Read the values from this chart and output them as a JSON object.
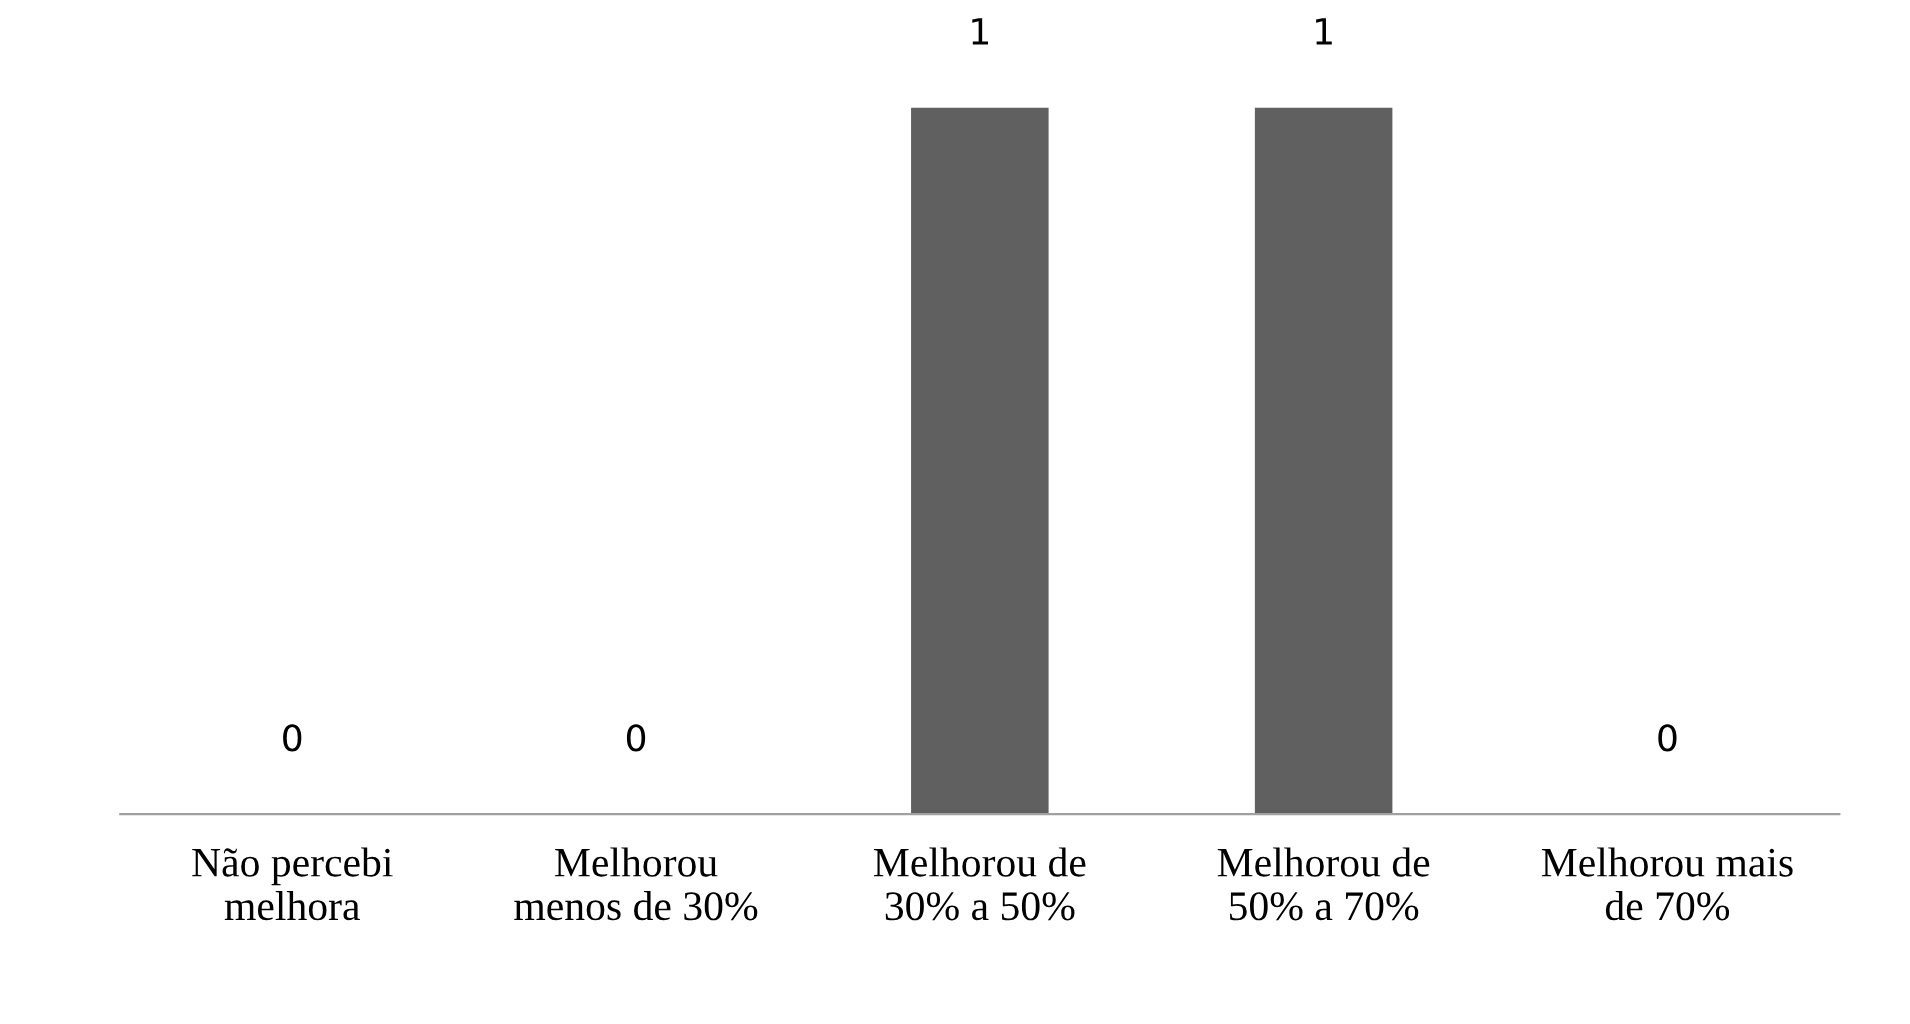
{
  "chart_data": {
    "type": "bar",
    "categories": [
      "Não percebi\nmelhora",
      "Melhorou\nmenos de 30%",
      "Melhorou de\n30% a 50%",
      "Melhorou de\n50% a 70%",
      "Melhorou mais\nde 70%"
    ],
    "values": [
      0,
      0,
      1,
      1,
      0
    ],
    "color": "#606060",
    "data_labels": true,
    "tick_labels": "x",
    "grid": false,
    "legend": false
  }
}
